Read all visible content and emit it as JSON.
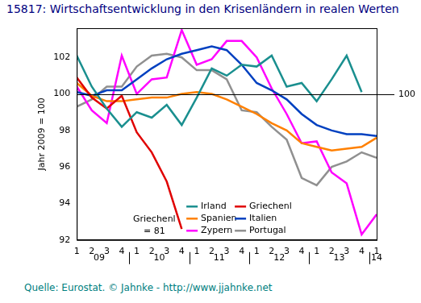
{
  "chart_data": {
    "type": "line",
    "title": "15817: Wirtschaftsentwicklung in den Krisenländern in realen Werten",
    "source": "Quelle: Eurostat. © Jahnke - http://www.jjahnke.net",
    "y_label": "Jahr 2009 = 100",
    "categories": [
      "1",
      "2",
      "3",
      "4",
      "1",
      "2",
      "3",
      "4",
      "1",
      "2",
      "3",
      "4",
      "1",
      "2",
      "3",
      "4",
      "1",
      "2",
      "3",
      "4",
      "1"
    ],
    "years": [
      "09",
      "10",
      "11",
      "12",
      "13",
      "14"
    ],
    "series": [
      {
        "name": "Irland",
        "color": "#1a8f8f",
        "values": [
          102.1,
          100.4,
          99.2,
          98.2,
          99.0,
          98.7,
          99.4,
          98.3,
          99.8,
          101.4,
          101.0,
          101.6,
          101.5,
          102.1,
          100.4,
          100.6,
          99.6,
          100.8,
          102.1,
          100.1,
          null
        ]
      },
      {
        "name": "Griechenl",
        "color": "#e00000",
        "values": [
          100.9,
          99.8,
          99.2,
          99.9,
          97.9,
          96.8,
          95.2,
          92.6,
          null,
          null,
          null,
          null,
          null,
          null,
          null,
          null,
          null,
          null,
          null,
          null,
          null
        ]
      },
      {
        "name": "Spanien",
        "color": "#ff8000",
        "values": [
          100.6,
          99.9,
          99.6,
          99.6,
          99.7,
          99.8,
          99.8,
          100.0,
          100.1,
          100.0,
          99.7,
          99.3,
          98.9,
          98.4,
          98.0,
          97.3,
          97.1,
          96.9,
          97.0,
          97.1,
          97.6
        ]
      },
      {
        "name": "Italien",
        "color": "#0040c0",
        "values": [
          100.1,
          99.9,
          100.2,
          100.2,
          100.8,
          101.4,
          101.9,
          102.2,
          102.4,
          102.6,
          102.4,
          101.6,
          100.6,
          100.2,
          99.7,
          98.9,
          98.3,
          98.0,
          97.8,
          97.8,
          97.7
        ]
      },
      {
        "name": "Zypern",
        "color": "#ff00ff",
        "values": [
          100.4,
          99.1,
          98.4,
          102.1,
          100.0,
          100.8,
          100.9,
          103.5,
          101.6,
          101.9,
          102.9,
          102.9,
          102.0,
          100.3,
          98.9,
          97.3,
          97.4,
          95.7,
          95.1,
          92.3,
          93.4
        ]
      },
      {
        "name": "Portugal",
        "color": "#909090",
        "values": [
          99.3,
          99.7,
          100.4,
          100.4,
          101.5,
          102.1,
          102.2,
          102.0,
          101.3,
          101.3,
          100.8,
          99.1,
          99.0,
          98.2,
          97.5,
          95.4,
          95.0,
          96.0,
          96.3,
          96.8,
          96.5
        ]
      }
    ],
    "annotations": [
      {
        "text": "Griechenl = 81",
        "series": "Griechenl"
      },
      {
        "text": "100",
        "y": 100
      }
    ],
    "ylim": [
      92,
      103.6
    ],
    "yticks": [
      92,
      94,
      96,
      98,
      100,
      102
    ],
    "grid": false,
    "legend": "lower center"
  }
}
